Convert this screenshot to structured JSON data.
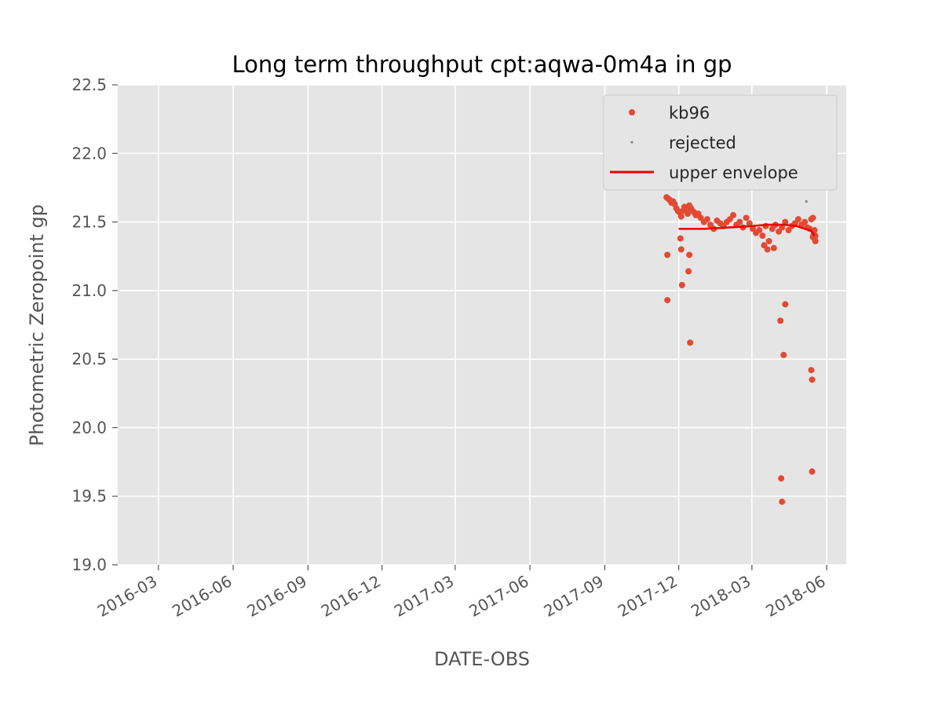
{
  "chart_data": {
    "type": "scatter",
    "title": "Long term throughput  cpt:aqwa-0m4a in gp",
    "xlabel": "DATE-OBS",
    "ylabel": "Photometric Zeropoint gp",
    "ylim": [
      19.0,
      22.5
    ],
    "xlim": [
      "2016-01-11",
      "2018-06-25"
    ],
    "grid": true,
    "legend_position": "top-right",
    "x_ticks": [
      "2016-03",
      "2016-06",
      "2016-09",
      "2016-12",
      "2017-03",
      "2017-06",
      "2017-09",
      "2017-12",
      "2018-03",
      "2018-06"
    ],
    "x_tick_dates": [
      "2016-03-01",
      "2016-06-01",
      "2016-09-01",
      "2016-12-01",
      "2017-03-01",
      "2017-06-01",
      "2017-09-01",
      "2017-12-01",
      "2018-03-01",
      "2018-06-01"
    ],
    "y_ticks": [
      "19.0",
      "19.5",
      "20.0",
      "20.5",
      "21.0",
      "21.5",
      "22.0",
      "22.5"
    ],
    "colors": {
      "kb96": "#E24A33",
      "rejected": "#888888",
      "envelope": "#EE0000",
      "plot_bg": "#E5E5E5",
      "grid": "#FFFFFF"
    },
    "series": [
      {
        "name": "kb96",
        "x": [
          "2017-11-16",
          "2017-11-18",
          "2017-11-20",
          "2017-11-22",
          "2017-11-24",
          "2017-11-26",
          "2017-11-28",
          "2017-11-30",
          "2017-12-02",
          "2017-12-04",
          "2017-12-06",
          "2017-12-08",
          "2017-12-10",
          "2017-12-12",
          "2017-12-14",
          "2017-12-16",
          "2017-12-18",
          "2017-12-20",
          "2017-12-22",
          "2017-12-25",
          "2017-12-28",
          "2018-01-01",
          "2018-01-05",
          "2018-01-09",
          "2018-01-13",
          "2018-01-17",
          "2018-01-21",
          "2018-01-25",
          "2018-01-29",
          "2018-02-02",
          "2018-02-06",
          "2018-02-10",
          "2018-02-14",
          "2018-02-18",
          "2018-02-22",
          "2018-02-26",
          "2018-03-02",
          "2018-03-06",
          "2018-03-10",
          "2018-03-14",
          "2018-03-18",
          "2018-03-22",
          "2018-03-26",
          "2018-03-30",
          "2018-04-03",
          "2018-04-07",
          "2018-04-11",
          "2018-04-15",
          "2018-04-19",
          "2018-04-23",
          "2018-04-27",
          "2018-05-01",
          "2018-05-05",
          "2018-05-08",
          "2018-05-11",
          "2018-05-13",
          "2018-05-15",
          "2018-05-17",
          "2018-05-18",
          "2017-11-17",
          "2017-11-17",
          "2017-12-03",
          "2017-12-04",
          "2017-12-05",
          "2017-12-13",
          "2017-12-14",
          "2017-12-15",
          "2018-03-16",
          "2018-03-20",
          "2018-03-28",
          "2018-04-05",
          "2018-04-06",
          "2018-04-07",
          "2018-04-09",
          "2018-04-11",
          "2018-05-13",
          "2018-05-14",
          "2018-05-14",
          "2018-05-15",
          "2018-05-16",
          "2018-05-17",
          "2018-05-18"
        ],
        "y": [
          21.68,
          21.67,
          21.66,
          21.64,
          21.65,
          21.63,
          21.6,
          21.58,
          21.57,
          21.54,
          21.58,
          21.61,
          21.59,
          21.56,
          21.62,
          21.6,
          21.58,
          21.57,
          21.55,
          21.56,
          21.53,
          21.5,
          21.52,
          21.48,
          21.45,
          21.51,
          21.49,
          21.47,
          21.5,
          21.52,
          21.55,
          21.48,
          21.5,
          21.46,
          21.53,
          21.49,
          21.45,
          21.42,
          21.44,
          21.4,
          21.47,
          21.36,
          21.45,
          21.48,
          21.43,
          21.46,
          21.5,
          21.44,
          21.47,
          21.49,
          21.52,
          21.48,
          21.5,
          21.46,
          21.45,
          21.52,
          21.53,
          21.38,
          21.36,
          21.26,
          20.93,
          21.38,
          21.3,
          21.04,
          21.14,
          21.26,
          20.62,
          21.33,
          21.3,
          21.31,
          20.78,
          19.63,
          19.46,
          20.53,
          20.9,
          20.42,
          20.35,
          19.68,
          21.39,
          21.41,
          21.44,
          21.4
        ]
      },
      {
        "name": "rejected",
        "x": [
          "2018-05-07"
        ],
        "y": [
          21.65
        ]
      },
      {
        "name": "upper envelope",
        "x": [
          "2017-12-01",
          "2018-01-01",
          "2018-02-01",
          "2018-03-01",
          "2018-03-20",
          "2018-04-10",
          "2018-04-25",
          "2018-05-05",
          "2018-05-12",
          "2018-05-15",
          "2018-05-17"
        ],
        "y": [
          21.45,
          21.45,
          21.46,
          21.47,
          21.48,
          21.48,
          21.47,
          21.45,
          21.44,
          21.42,
          21.4
        ]
      }
    ],
    "legend": [
      {
        "label": "kb96",
        "marker": "dot"
      },
      {
        "label": "rejected",
        "marker": "small-dot"
      },
      {
        "label": "upper envelope",
        "marker": "line"
      }
    ]
  }
}
